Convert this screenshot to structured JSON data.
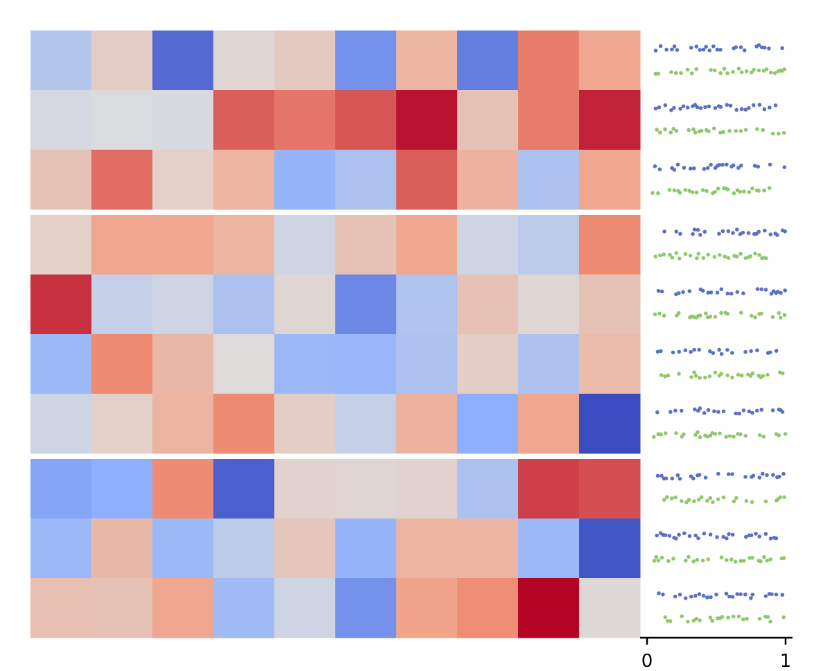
{
  "chart_data": {
    "type": "heatmap",
    "title": "",
    "xlabel": "",
    "ylabel": "",
    "colormap": "coolwarm",
    "color_range": [
      -1,
      1
    ],
    "row_groups": [
      3,
      4,
      3
    ],
    "n_cols": 10,
    "values": [
      [
        -0.25,
        0.12,
        -0.85,
        0.05,
        0.15,
        -0.65,
        0.3,
        -0.75,
        0.6,
        0.4
      ],
      [
        -0.05,
        -0.02,
        -0.03,
        0.7,
        0.62,
        0.73,
        0.95,
        0.2,
        0.6,
        0.9
      ],
      [
        0.2,
        0.65,
        0.1,
        0.3,
        -0.45,
        -0.3,
        0.7,
        0.32,
        -0.3,
        0.4
      ],
      [
        0.1,
        0.4,
        0.4,
        0.3,
        -0.1,
        0.2,
        0.4,
        -0.1,
        -0.2,
        0.55
      ],
      [
        0.85,
        -0.15,
        -0.1,
        -0.3,
        0.05,
        -0.7,
        -0.28,
        0.2,
        0.05,
        0.2
      ],
      [
        -0.4,
        0.55,
        0.28,
        0.02,
        -0.4,
        -0.42,
        -0.3,
        0.12,
        -0.3,
        0.25
      ],
      [
        -0.1,
        0.1,
        0.3,
        0.55,
        0.12,
        -0.15,
        0.32,
        -0.5,
        0.4,
        -1.0
      ],
      [
        -0.55,
        -0.5,
        0.55,
        -0.9,
        0.08,
        0.06,
        0.08,
        -0.3,
        0.8,
        0.75
      ],
      [
        -0.4,
        0.27,
        -0.4,
        -0.2,
        0.17,
        -0.45,
        0.3,
        0.3,
        -0.4,
        -0.95
      ],
      [
        0.22,
        0.2,
        0.4,
        -0.38,
        -0.1,
        -0.65,
        0.42,
        0.54,
        1.0,
        0.03
      ]
    ],
    "strip_plot": {
      "type": "scatter",
      "xlim": [
        0,
        1
      ],
      "x_ticks": [
        "0",
        "1"
      ],
      "series_colors": [
        "#5b6fc7",
        "#8ec86a"
      ],
      "points_per_row": 28
    }
  }
}
